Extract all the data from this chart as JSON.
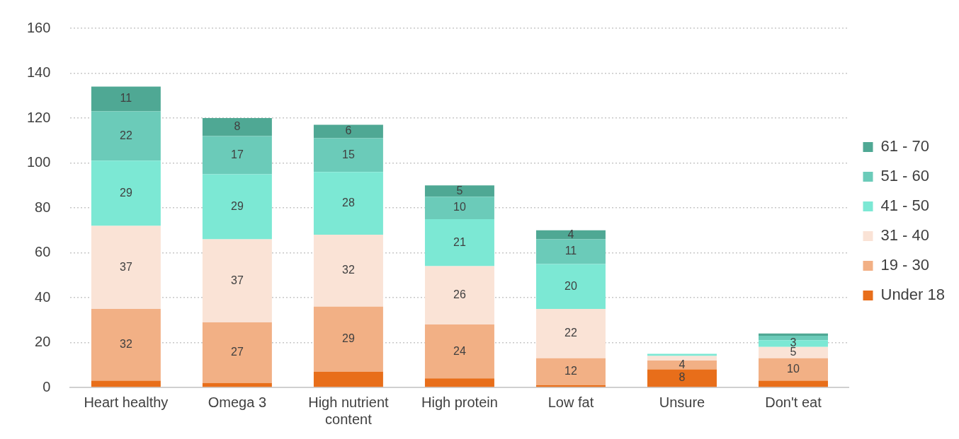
{
  "chart_data": {
    "type": "bar",
    "stacked": true,
    "categories": [
      "Heart healthy",
      "Omega 3",
      "High nutrient content",
      "High protein",
      "Low fat",
      "Unsure",
      "Don't eat"
    ],
    "series": [
      {
        "name": "Under 18",
        "color": "#e86e1a",
        "values": [
          3,
          2,
          7,
          4,
          1,
          8,
          3
        ],
        "value_labels": [
          null,
          null,
          null,
          null,
          null,
          "8",
          null
        ]
      },
      {
        "name": "19 - 30",
        "color": "#f2b085",
        "values": [
          32,
          27,
          29,
          24,
          12,
          4,
          10
        ],
        "value_labels": [
          "32",
          "27",
          "29",
          "24",
          "12",
          "4",
          "10"
        ]
      },
      {
        "name": "31 - 40",
        "color": "#fae3d6",
        "values": [
          37,
          37,
          32,
          26,
          22,
          2,
          5
        ],
        "value_labels": [
          "37",
          "37",
          "32",
          "26",
          "22",
          null,
          "5"
        ]
      },
      {
        "name": "41 - 50",
        "color": "#7ce8d4",
        "values": [
          29,
          29,
          28,
          21,
          20,
          1,
          3
        ],
        "value_labels": [
          "29",
          "29",
          "28",
          "21",
          "20",
          null,
          "3"
        ]
      },
      {
        "name": "51 - 60",
        "color": "#6bcbb9",
        "values": [
          22,
          17,
          15,
          10,
          11,
          0,
          2
        ],
        "value_labels": [
          "22",
          "17",
          "15",
          "10",
          "11",
          null,
          null
        ]
      },
      {
        "name": "61 - 70",
        "color": "#4fa894",
        "values": [
          11,
          8,
          6,
          5,
          4,
          0,
          1
        ],
        "value_labels": [
          "11",
          "8",
          "6",
          "5",
          "4",
          null,
          null
        ]
      }
    ],
    "ylim": [
      0,
      160
    ],
    "yticks": [
      0,
      20,
      40,
      60,
      80,
      100,
      120,
      140,
      160
    ],
    "grid": "y",
    "legend": "right"
  }
}
